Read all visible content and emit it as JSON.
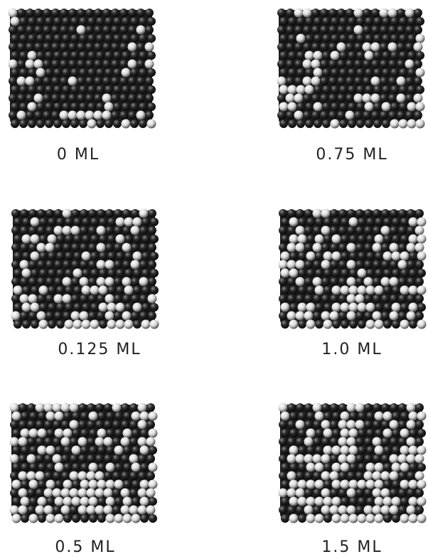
{
  "panels": [
    {
      "label": "0 ML"
    },
    {
      "label": "0.75 ML"
    },
    {
      "label": "0.125 ML"
    },
    {
      "label": "1.0 ML"
    },
    {
      "label": "0.5 ML"
    },
    {
      "label": "1.5 ML"
    }
  ]
}
